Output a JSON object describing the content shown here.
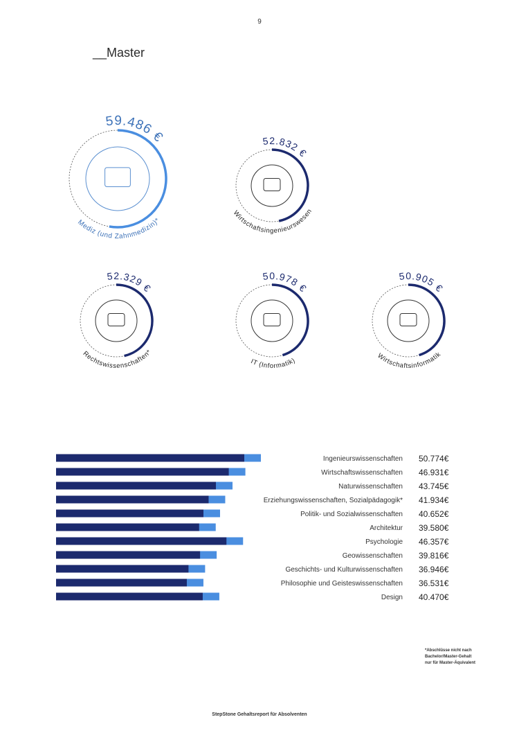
{
  "page_number": "9",
  "heading": "__Master",
  "highlights": [
    {
      "salary": "59.486 €",
      "field": "Mediz (und Zahnmedizin)*"
    },
    {
      "salary": "52.832 €",
      "field": "Wirtschaftsingenieurswesen"
    },
    {
      "salary": "52.329 €",
      "field": "Rechtswissenschaften*"
    },
    {
      "salary": "50.978 €",
      "field": "IT (Informatik)"
    },
    {
      "salary": "50.905 €",
      "field": "Wirtschaftsinformatik"
    }
  ],
  "table": {
    "rows": [
      [
        "Ingenieurswissenschaften",
        "50.774€"
      ],
      [
        "Wirtschaftswissenschaften",
        "46.931€"
      ],
      [
        "Naturwissenschaften",
        "43.745€"
      ],
      [
        "Erziehungswissenschaften, Sozialpädagogik*",
        "41.934€"
      ],
      [
        "Politik- und Sozialwissenschaften",
        "40.652€"
      ],
      [
        "Architektur",
        "39.580€"
      ],
      [
        "Psychologie",
        "46.357€"
      ],
      [
        "Geowissenschaften",
        "39.816€"
      ],
      [
        "Geschichts- und Kulturwissenschaften",
        "36.946€"
      ],
      [
        "Philosophie und Geisteswissenschaften",
        "36.531€"
      ],
      [
        "Design",
        "40.470€"
      ]
    ]
  },
  "footnote": [
    "*Abschlüsse nicht nach",
    "Bachelor/Master-Gehalt",
    "nur für Master-Äquivalent"
  ],
  "footer": "StepStone Gehaltsreport für Absolventen"
}
